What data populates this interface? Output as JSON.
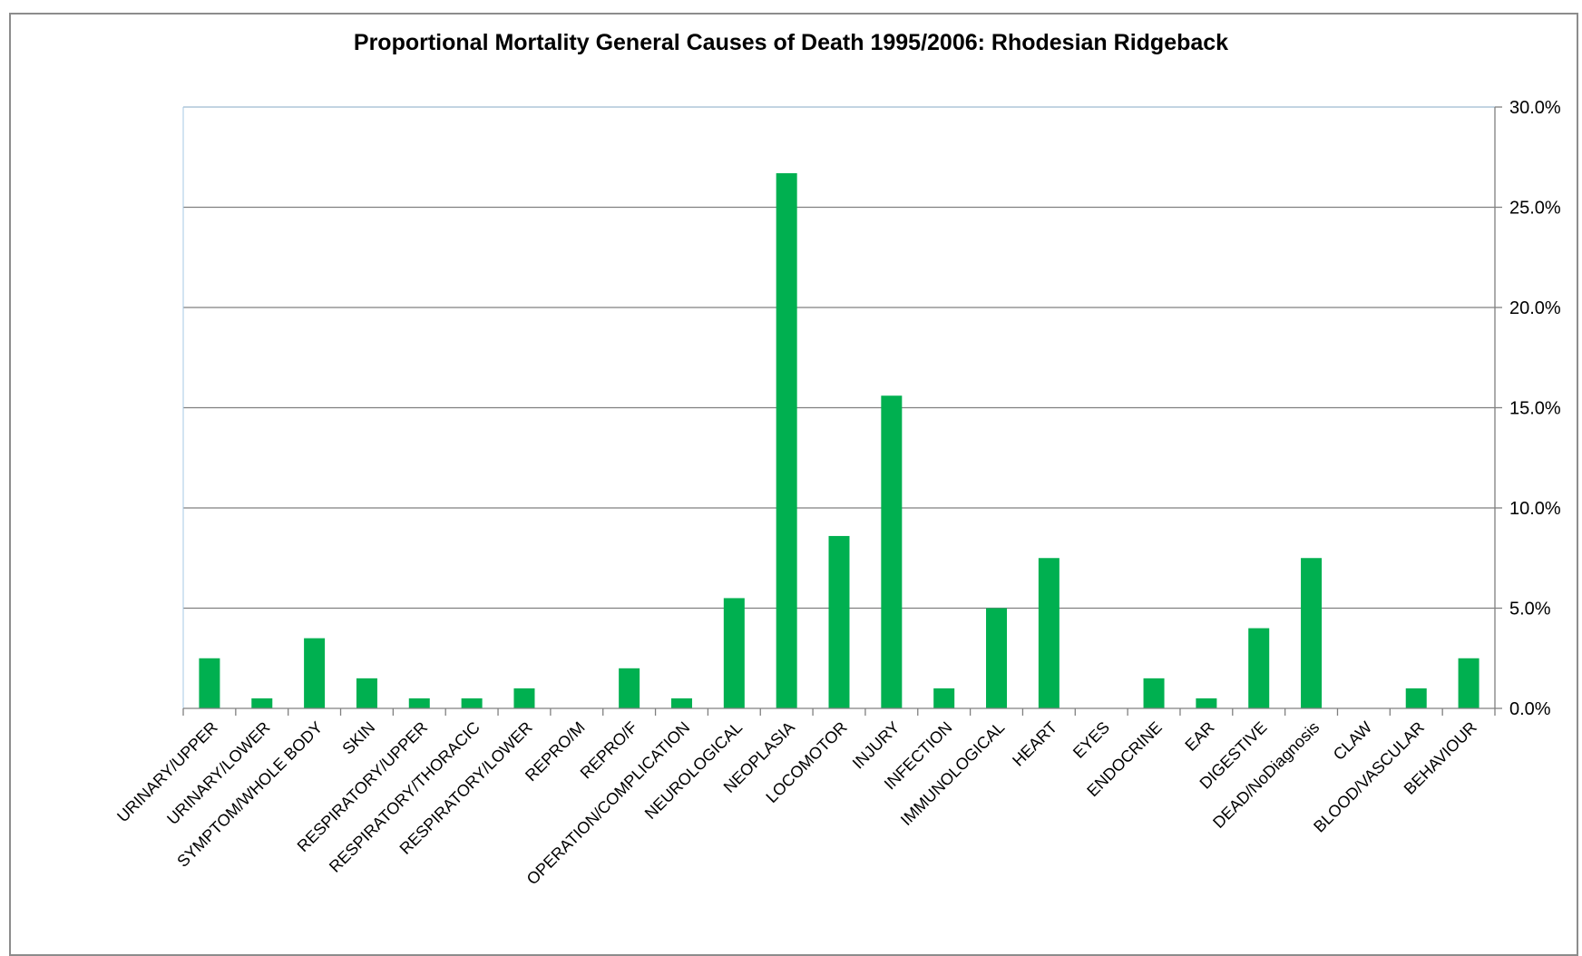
{
  "chart_data": {
    "type": "bar",
    "title": "Proportional Mortality General Causes of Death 1995/2006: Rhodesian Ridgeback",
    "xlabel": "",
    "ylabel": "",
    "categories": [
      "URINARY/UPPER",
      "URINARY/LOWER",
      "SYMPTOM/WHOLE BODY",
      "SKIN",
      "RESPIRATORY/UPPER",
      "RESPIRATORY/THORACIC",
      "RESPIRATORY/LOWER",
      "REPRO/M",
      "REPRO/F",
      "OPERATION/COMPLICATION",
      "NEUROLOGICAL",
      "NEOPLASIA",
      "LOCOMOTOR",
      "INJURY",
      "INFECTION",
      "IMMUNOLOGICAL",
      "HEART",
      "EYES",
      "ENDOCRINE",
      "EAR",
      "DIGESTIVE",
      "DEAD/NoDiagnosis",
      "CLAW",
      "BLOOD/VASCULAR",
      "BEHAVIOUR"
    ],
    "values": [
      2.5,
      0.5,
      3.5,
      1.5,
      0.5,
      0.5,
      1.0,
      0.0,
      2.0,
      0.5,
      5.5,
      26.7,
      8.6,
      15.6,
      1.0,
      5.0,
      7.5,
      0.0,
      1.5,
      0.5,
      4.0,
      7.5,
      0.0,
      1.0,
      2.5
    ],
    "ylim": [
      0,
      30
    ],
    "yticks": [
      "0.0%",
      "5.0%",
      "10.0%",
      "15.0%",
      "20.0%",
      "25.0%",
      "30.0%"
    ],
    "y_axis_side": "right",
    "grid": true,
    "legend": "none",
    "bar_color": "#00b050"
  }
}
